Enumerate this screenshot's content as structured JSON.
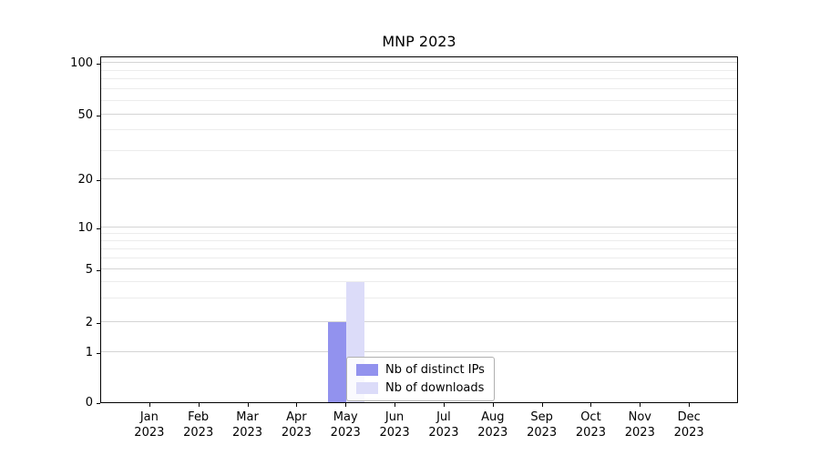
{
  "title": "MNP 2023",
  "chart_data": {
    "type": "bar",
    "title": "MNP 2023",
    "categories": [
      {
        "month": "Jan",
        "year": "2023"
      },
      {
        "month": "Feb",
        "year": "2023"
      },
      {
        "month": "Mar",
        "year": "2023"
      },
      {
        "month": "Apr",
        "year": "2023"
      },
      {
        "month": "May",
        "year": "2023"
      },
      {
        "month": "Jun",
        "year": "2023"
      },
      {
        "month": "Jul",
        "year": "2023"
      },
      {
        "month": "Aug",
        "year": "2023"
      },
      {
        "month": "Sep",
        "year": "2023"
      },
      {
        "month": "Oct",
        "year": "2023"
      },
      {
        "month": "Nov",
        "year": "2023"
      },
      {
        "month": "Dec",
        "year": "2023"
      }
    ],
    "series": [
      {
        "name": "Nb of distinct IPs",
        "color": "#9292ee",
        "values": [
          0,
          0,
          0,
          0,
          2,
          0,
          0,
          0,
          0,
          0,
          0,
          0
        ]
      },
      {
        "name": "Nb of downloads",
        "color": "#dcdcf9",
        "values": [
          0,
          0,
          0,
          0,
          4,
          0,
          0,
          0,
          0,
          0,
          0,
          0
        ]
      }
    ],
    "yscale": "symlog",
    "yticks": [
      0,
      1,
      2,
      5,
      10,
      20,
      50,
      100
    ],
    "minor_yticks": [
      3,
      4,
      6,
      7,
      8,
      9,
      30,
      40,
      60,
      70,
      80,
      90
    ],
    "ylim": [
      0,
      110
    ],
    "grid": "horizontal",
    "legend_position": "lower center"
  }
}
